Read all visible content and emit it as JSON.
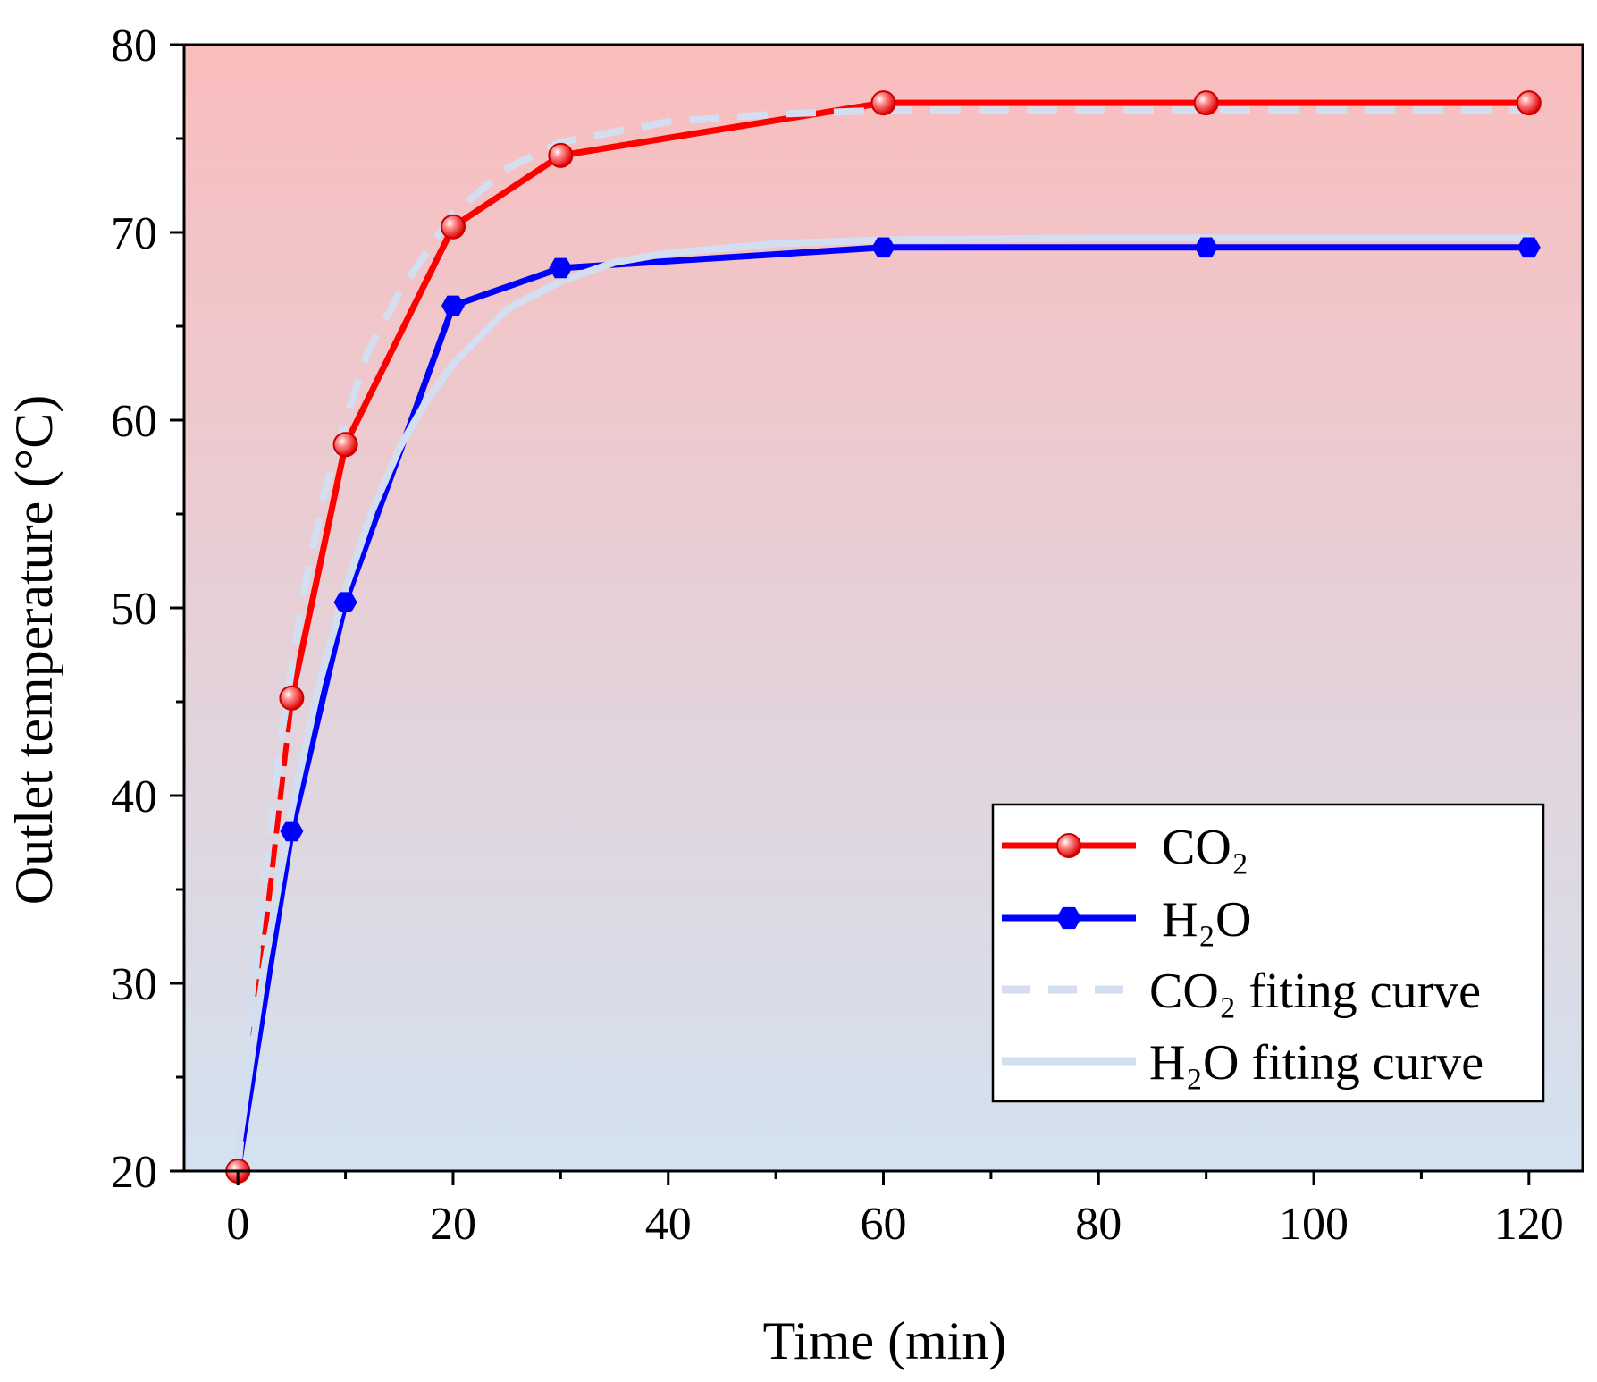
{
  "chart_data": {
    "type": "line",
    "title": "",
    "xlabel": "Time (min)",
    "ylabel": "Outlet temperature (°C)",
    "xlim": [
      -5,
      125
    ],
    "ylim": [
      20,
      80
    ],
    "xticks": [
      0,
      20,
      40,
      60,
      80,
      100,
      120
    ],
    "yticks": [
      20,
      30,
      40,
      50,
      60,
      70,
      80
    ],
    "background_gradient": {
      "top": "#f9bdbd",
      "bottom": "#d3e2f0"
    },
    "legend_position": "bottom-right",
    "series": [
      {
        "name": "CO₂",
        "kind": "data",
        "color": "#ff0000",
        "marker": "circle",
        "x": [
          0,
          5,
          10,
          20,
          30,
          60,
          90,
          120
        ],
        "y": [
          20.0,
          45.2,
          58.7,
          70.3,
          74.1,
          76.9,
          76.9,
          76.9
        ]
      },
      {
        "name": "H₂O",
        "kind": "data",
        "color": "#0000ff",
        "marker": "hexagon",
        "x": [
          0,
          5,
          10,
          20,
          30,
          60,
          90,
          120
        ],
        "y": [
          20.0,
          38.1,
          50.3,
          66.1,
          68.1,
          69.2,
          69.2,
          69.2
        ]
      },
      {
        "name": "CO₂ fiting curve",
        "kind": "fit",
        "color": "#d3dff0",
        "dash": "dashed",
        "x": [
          0,
          2,
          4,
          6,
          8,
          10,
          12,
          15,
          20,
          25,
          30,
          40,
          50,
          60,
          90,
          120
        ],
        "y": [
          20.0,
          33.0,
          43.0,
          50.5,
          56.0,
          60.0,
          63.5,
          66.8,
          71.0,
          73.4,
          74.8,
          75.9,
          76.3,
          76.5,
          76.5,
          76.5
        ]
      },
      {
        "name": "H₂O fiting curve",
        "kind": "fit",
        "color": "#d3dff0",
        "dash": "solid",
        "x": [
          0,
          2.5,
          5,
          7.5,
          10,
          12.5,
          15,
          17.5,
          20,
          25,
          30,
          35,
          40,
          50,
          60,
          80,
          100,
          120
        ],
        "y": [
          21.0,
          31.0,
          39.2,
          45.8,
          51.0,
          55.2,
          58.5,
          61.0,
          63.0,
          65.9,
          67.4,
          68.4,
          68.9,
          69.4,
          69.6,
          69.7,
          69.7,
          69.7
        ]
      }
    ]
  }
}
